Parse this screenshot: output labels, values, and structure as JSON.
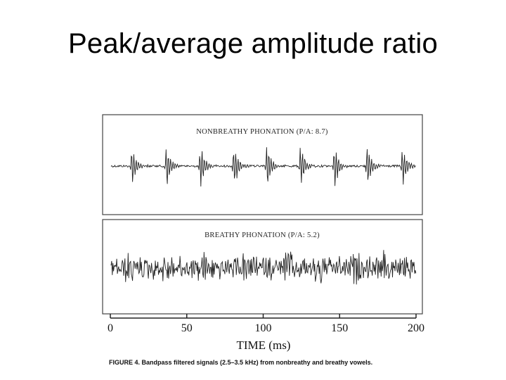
{
  "slide": {
    "title": "Peak/average amplitude ratio"
  },
  "figure": {
    "panels": [
      {
        "id": "nonbreathy",
        "label": "NONBREATHY PHONATION (P/A: 8.7)",
        "peak_to_average": 8.7
      },
      {
        "id": "breathy",
        "label": "BREATHY PHONATION (P/A: 5.2)",
        "peak_to_average": 5.2
      }
    ],
    "x_axis": {
      "label": "TIME (ms)",
      "ticks": [
        "0",
        "50",
        "100",
        "150",
        "200"
      ],
      "range": [
        0,
        200
      ]
    },
    "caption": "FIGURE 4. Bandpass filtered signals (2.5–3.5 kHz) from nonbreathy and breathy vowels."
  }
}
